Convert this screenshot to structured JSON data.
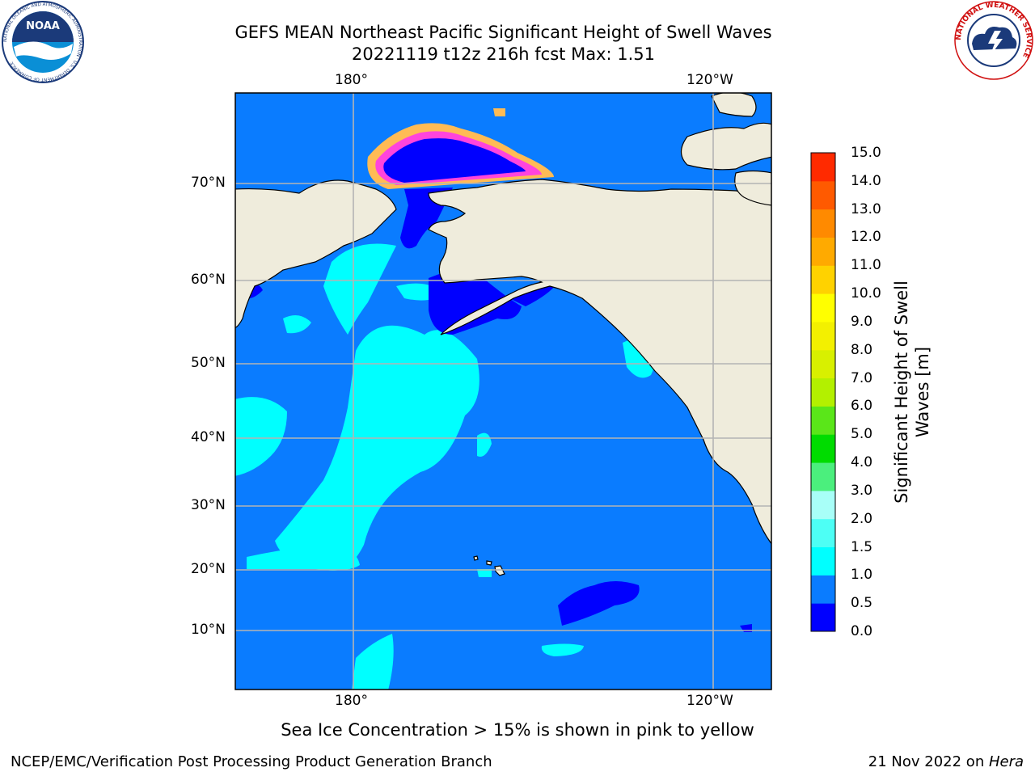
{
  "header": {
    "title_line1": "GEFS MEAN Northeast Pacific Significant Height of Swell Waves",
    "title_line2": "20221119 t12z 216h fcst   Max: 1.51"
  },
  "map": {
    "top_lon_labels": [
      "180°",
      "120°W"
    ],
    "bottom_lon_labels": [
      "180°",
      "120°W"
    ],
    "lat_labels": [
      "70°N",
      "60°N",
      "50°N",
      "40°N",
      "30°N",
      "20°N",
      "10°N"
    ],
    "colors": {
      "land": "#efecdc",
      "ocean_base": "#0a7cff",
      "swell_low": "#0000ff",
      "swell_mid": "#00ffff",
      "ice_pink": "#ff44dd",
      "ice_orange": "#ffbb55",
      "ice_yellow": "#ffee44",
      "grid": "#b4b4b4"
    }
  },
  "colorbar": {
    "label": "Significant Height of Swell Waves [m]",
    "ticks": [
      "15.0",
      "14.0",
      "13.0",
      "12.0",
      "11.0",
      "10.0",
      "9.0",
      "8.0",
      "7.0",
      "6.0",
      "5.0",
      "4.0",
      "3.0",
      "2.0",
      "1.5",
      "1.0",
      "0.5",
      "0.0"
    ],
    "colors_bottom_to_top": [
      "#0000ff",
      "#0a7cff",
      "#00ffff",
      "#4dfff5",
      "#a8fff8",
      "#4bef7d",
      "#00dc00",
      "#5ae619",
      "#b3f000",
      "#d8f000",
      "#f3f000",
      "#ffff00",
      "#ffd200",
      "#ffaa00",
      "#ff8a00",
      "#ff5a00",
      "#ff2a00",
      "#ff0000"
    ]
  },
  "note": "Sea Ice Concentration > 15% is shown in pink to yellow",
  "footer": {
    "left": "NCEP/EMC/Verification Post Processing Product Generation Branch",
    "right_prefix": "21 Nov 2022 on ",
    "right_host": "Hera"
  },
  "logos": {
    "noaa_text": "NOAA",
    "noaa_ring": "NATIONAL OCEANIC AND ATMOSPHERIC ADMINISTRATION · U.S. DEPARTMENT OF COMMERCE",
    "nws_ring": "NATIONAL WEATHER SERVICE"
  }
}
